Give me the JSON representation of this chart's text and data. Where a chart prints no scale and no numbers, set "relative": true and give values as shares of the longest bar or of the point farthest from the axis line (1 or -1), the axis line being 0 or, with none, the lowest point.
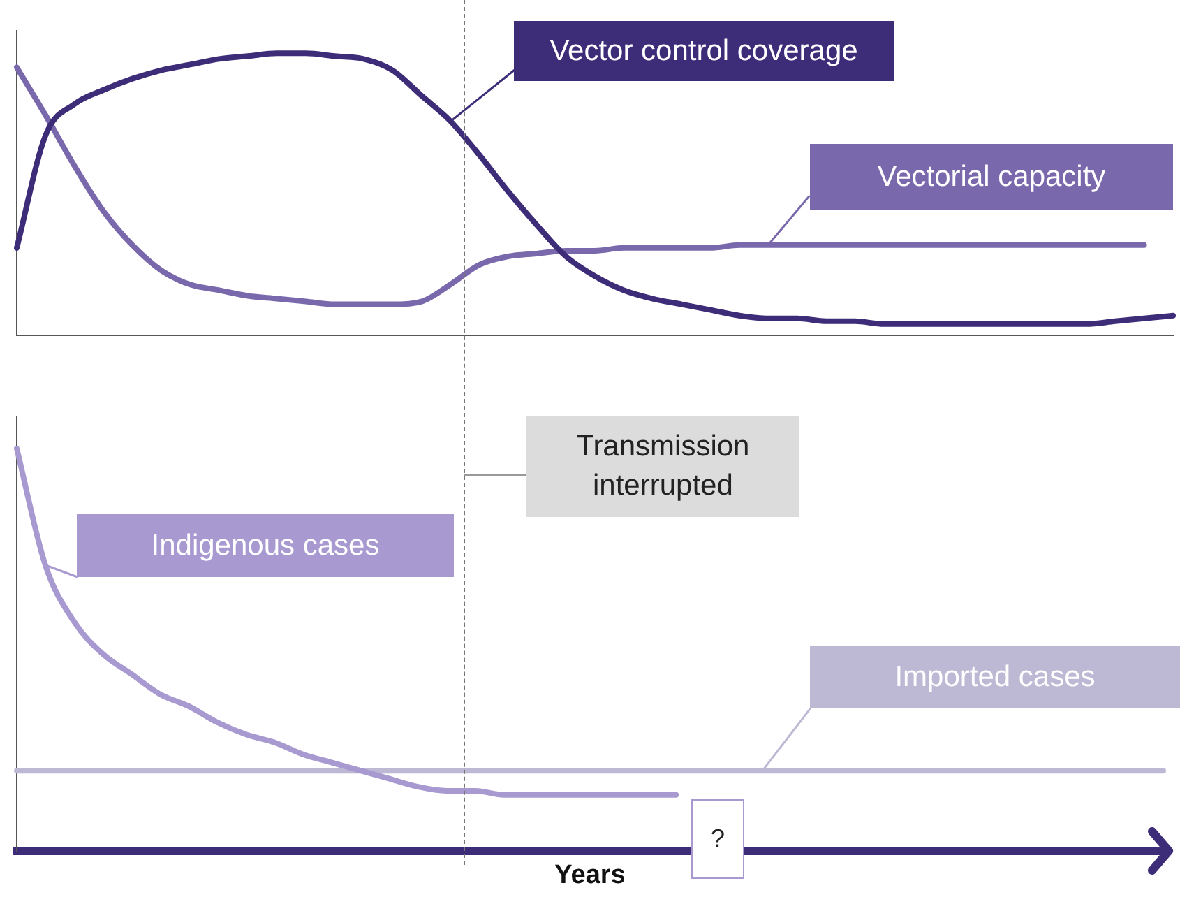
{
  "chart_data": [
    {
      "type": "line",
      "relative": true,
      "legend": false,
      "marker": "none",
      "categories": [
        null,
        null,
        null,
        null,
        null,
        null,
        null,
        null,
        null,
        null,
        null,
        null,
        null,
        null,
        null,
        null,
        null,
        null,
        null,
        null,
        null,
        null,
        null,
        null,
        null,
        null,
        null,
        null,
        null,
        null,
        null,
        null,
        null,
        null,
        null,
        null,
        null,
        null,
        null,
        null,
        null
      ],
      "series": [
        {
          "name": "Vector control coverage",
          "color": "#3d2c78",
          "values": [
            0.31,
            0.71,
            0.82,
            0.87,
            0.91,
            0.94,
            0.96,
            0.98,
            0.99,
            1,
            1,
            0.99,
            0.98,
            0.94,
            0.85,
            0.76,
            0.64,
            0.51,
            0.39,
            0.28,
            0.21,
            0.16,
            0.13,
            0.11,
            0.09,
            0.07,
            0.06,
            0.06,
            0.05,
            0.05,
            0.04,
            0.04,
            0.04,
            0.04,
            0.04,
            0.04,
            0.04,
            0.04,
            0.05,
            0.06,
            0.07
          ]
        },
        {
          "name": "Vectorial capacity",
          "color": "#7a68ac",
          "values": [
            0.95,
            0.78,
            0.6,
            0.44,
            0.32,
            0.23,
            0.18,
            0.16,
            0.14,
            0.13,
            0.12,
            0.11,
            0.11,
            0.11,
            0.12,
            0.18,
            0.25,
            0.28,
            0.29,
            0.3,
            0.3,
            0.31,
            0.31,
            0.31,
            0.31,
            0.32,
            0.32,
            0.32,
            0.32,
            0.32,
            0.32,
            0.32,
            0.32,
            0.32,
            0.32,
            0.32,
            0.32,
            0.32,
            0.32,
            0.32,
            null
          ]
        }
      ]
    },
    {
      "type": "line",
      "relative": true,
      "legend": false,
      "marker": "none",
      "xlabel": "Years",
      "categories": [
        null,
        null,
        null,
        null,
        null,
        null,
        null,
        null,
        null,
        null,
        null,
        null,
        null,
        null,
        null,
        null,
        null,
        null,
        null,
        null,
        null,
        null,
        null,
        null,
        null,
        null,
        null,
        null,
        null,
        null,
        null,
        null,
        null,
        null,
        null,
        null,
        null,
        null,
        null,
        null,
        null
      ],
      "series": [
        {
          "name": "Indigenous cases",
          "color": "#a89ad0",
          "values": [
            1,
            0.71,
            0.57,
            0.49,
            0.44,
            0.39,
            0.36,
            0.32,
            0.29,
            0.27,
            0.24,
            0.22,
            0.2,
            0.18,
            0.16,
            0.15,
            0.15,
            0.14,
            0.14,
            0.14,
            0.14,
            0.14,
            0.14,
            0.14,
            null,
            null,
            null,
            null,
            null,
            null,
            null,
            null,
            null,
            null,
            null,
            null,
            null,
            null,
            null,
            null,
            null
          ]
        },
        {
          "name": "Imported cases",
          "color": "#bdb9d4",
          "values": [
            0.2,
            0.2,
            0.2,
            0.2,
            0.2,
            0.2,
            0.2,
            0.2,
            0.2,
            0.2,
            0.2,
            0.2,
            0.2,
            0.2,
            0.2,
            0.2,
            0.2,
            0.2,
            0.2,
            0.2,
            0.2,
            0.2,
            0.2,
            0.2,
            0.2,
            0.2,
            0.2,
            0.2,
            0.2,
            0.2,
            0.2,
            0.2,
            0.2,
            0.2,
            0.2,
            0.2,
            0.2,
            0.2,
            0.2,
            0.2,
            0.2
          ]
        }
      ],
      "annotations": [
        "Transmission interrupted",
        "?"
      ]
    }
  ]
}
